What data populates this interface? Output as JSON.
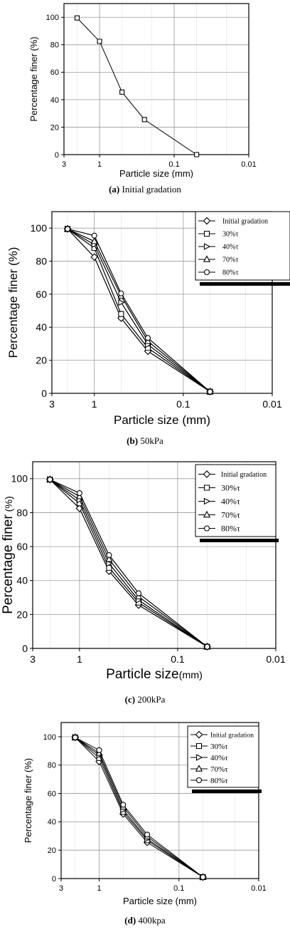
{
  "chart_data": [
    {
      "type": "line",
      "xlabel": "Particle size (mm)",
      "ylabel": "Percentage finer (%)",
      "xscale": "log-reversed",
      "xlim": [
        3,
        0.01
      ],
      "ylim": [
        0,
        110
      ],
      "xticks": [
        "3",
        "1",
        "0.1",
        "0.01"
      ],
      "yticks": [
        "0",
        "20",
        "40",
        "60",
        "80",
        "100"
      ],
      "grid": true,
      "caption_tag": "(a)",
      "caption_text": "Initial gradation",
      "series": [
        {
          "marker": "square",
          "x": [
            2,
            1,
            0.5,
            0.25,
            0.05
          ],
          "values": [
            99.5,
            82.5,
            45.5,
            25.5,
            0
          ]
        }
      ]
    },
    {
      "type": "line",
      "xlabel": "Particle size (mm)",
      "ylabel": "Percentage finer (%)",
      "xscale": "log-reversed",
      "xlim": [
        3,
        0.01
      ],
      "ylim": [
        0,
        110
      ],
      "xticks": [
        "3",
        "1",
        "0.1",
        "0.01"
      ],
      "yticks": [
        "0",
        "20",
        "40",
        "60",
        "80",
        "100"
      ],
      "grid": true,
      "legend": "top-right",
      "caption_tag": "(b)",
      "caption_text": "50kPa",
      "x": [
        2,
        1,
        0.5,
        0.25,
        0.05
      ],
      "series": [
        {
          "name": "Initial gradation",
          "marker": "diamond",
          "values": [
            99.5,
            82.5,
            45.5,
            25.5,
            1
          ]
        },
        {
          "name": "30%τ",
          "marker": "square",
          "values": [
            99.5,
            88,
            48,
            27.5,
            1
          ]
        },
        {
          "name": "40%τ",
          "marker": "triangle-right",
          "values": [
            99.5,
            90,
            55,
            29.5,
            1
          ]
        },
        {
          "name": "70%τ",
          "marker": "triangle-up",
          "values": [
            99.5,
            92,
            59,
            31.5,
            1
          ]
        },
        {
          "name": "80%τ",
          "marker": "circle",
          "values": [
            99.5,
            95.5,
            60.5,
            33.5,
            1
          ]
        }
      ]
    },
    {
      "type": "line",
      "xlabel": "Particle size",
      "xunit": "(mm)",
      "ylabel": "Percentage finer",
      "yunit": "(%)",
      "xscale": "log-reversed",
      "xlim": [
        3,
        0.01
      ],
      "ylim": [
        0,
        110
      ],
      "xticks": [
        "3",
        "1",
        "0.1",
        "0.01"
      ],
      "yticks": [
        "0",
        "20",
        "40",
        "60",
        "80",
        "100"
      ],
      "grid": true,
      "legend": "top-right",
      "caption_tag": "(c)",
      "caption_text": "200kPa",
      "x": [
        2,
        1,
        0.5,
        0.25,
        0.05
      ],
      "series": [
        {
          "name": "Initial gradation",
          "marker": "diamond",
          "values": [
            99.5,
            82.5,
            45.5,
            25.5,
            1
          ]
        },
        {
          "name": "30%τ",
          "marker": "square",
          "values": [
            99.5,
            85.5,
            47.5,
            27,
            1
          ]
        },
        {
          "name": "40%τ",
          "marker": "triangle-right",
          "values": [
            99.5,
            87.5,
            50,
            28.5,
            1
          ]
        },
        {
          "name": "70%τ",
          "marker": "triangle-up",
          "values": [
            99.5,
            89.5,
            52.5,
            30.5,
            1
          ]
        },
        {
          "name": "80%τ",
          "marker": "circle",
          "values": [
            99.5,
            91.5,
            55,
            32.5,
            1
          ]
        }
      ]
    },
    {
      "type": "line",
      "xlabel": "Particle size (mm)",
      "ylabel": "Percentage finer (%)",
      "xscale": "log-reversed",
      "xlim": [
        3,
        0.01
      ],
      "ylim": [
        0,
        110
      ],
      "xticks": [
        "3",
        "1",
        "0.1",
        "0.01"
      ],
      "yticks": [
        "0",
        "20",
        "40",
        "60",
        "80",
        "100"
      ],
      "grid": true,
      "legend": "top-right",
      "caption_tag": "(d)",
      "caption_text": "400kpa",
      "x": [
        2,
        1,
        0.5,
        0.25,
        0.05
      ],
      "series": [
        {
          "name": "Initial gradation",
          "marker": "diamond",
          "values": [
            99.5,
            82.5,
            45.5,
            25.5,
            1
          ]
        },
        {
          "name": "30%τ",
          "marker": "square",
          "values": [
            99.5,
            85,
            47,
            27,
            1
          ]
        },
        {
          "name": "40%τ",
          "marker": "triangle-right",
          "values": [
            99.5,
            87,
            48.5,
            28,
            1
          ]
        },
        {
          "name": "70%τ",
          "marker": "triangle-up",
          "values": [
            99.5,
            88.5,
            50.5,
            29.5,
            1
          ]
        },
        {
          "name": "80%τ",
          "marker": "circle",
          "values": [
            99.5,
            90.5,
            52,
            31,
            1
          ]
        }
      ]
    }
  ]
}
